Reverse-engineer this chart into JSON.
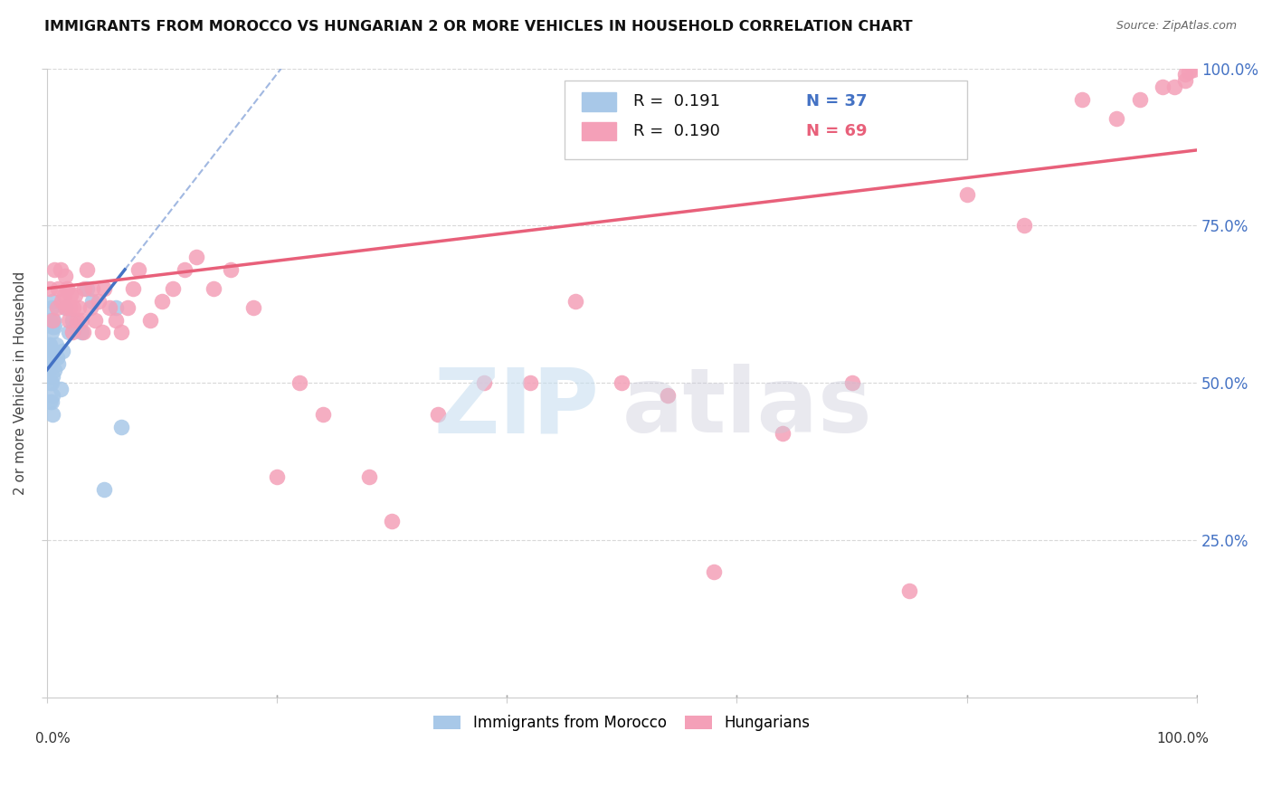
{
  "title": "IMMIGRANTS FROM MOROCCO VS HUNGARIAN 2 OR MORE VEHICLES IN HOUSEHOLD CORRELATION CHART",
  "source": "Source: ZipAtlas.com",
  "ylabel": "2 or more Vehicles in Household",
  "xlim": [
    0,
    1
  ],
  "ylim": [
    0,
    1
  ],
  "color_morocco": "#a8c8e8",
  "color_hungarian": "#f4a0b8",
  "color_line_morocco": "#4472c4",
  "color_line_hungarian": "#e8607a",
  "color_blue_text": "#4472c4",
  "color_pink_text": "#e8607a",
  "color_grid": "#d8d8d8",
  "morocco_x": [
    0.002,
    0.002,
    0.003,
    0.003,
    0.003,
    0.003,
    0.003,
    0.004,
    0.004,
    0.004,
    0.004,
    0.004,
    0.005,
    0.005,
    0.005,
    0.005,
    0.005,
    0.005,
    0.006,
    0.006,
    0.007,
    0.007,
    0.008,
    0.009,
    0.01,
    0.012,
    0.014,
    0.016,
    0.019,
    0.022,
    0.025,
    0.03,
    0.035,
    0.04,
    0.05,
    0.06,
    0.065
  ],
  "morocco_y": [
    0.56,
    0.52,
    0.6,
    0.56,
    0.53,
    0.5,
    0.47,
    0.62,
    0.58,
    0.54,
    0.5,
    0.47,
    0.63,
    0.59,
    0.55,
    0.51,
    0.48,
    0.45,
    0.6,
    0.55,
    0.59,
    0.52,
    0.56,
    0.54,
    0.53,
    0.49,
    0.55,
    0.62,
    0.58,
    0.6,
    0.59,
    0.58,
    0.65,
    0.63,
    0.33,
    0.62,
    0.43
  ],
  "hungarian_x": [
    0.003,
    0.005,
    0.007,
    0.009,
    0.01,
    0.012,
    0.013,
    0.015,
    0.016,
    0.017,
    0.018,
    0.019,
    0.02,
    0.021,
    0.022,
    0.023,
    0.025,
    0.026,
    0.028,
    0.03,
    0.032,
    0.033,
    0.035,
    0.038,
    0.04,
    0.042,
    0.045,
    0.048,
    0.05,
    0.055,
    0.06,
    0.065,
    0.07,
    0.075,
    0.08,
    0.09,
    0.1,
    0.11,
    0.12,
    0.13,
    0.145,
    0.16,
    0.18,
    0.2,
    0.22,
    0.24,
    0.28,
    0.3,
    0.34,
    0.38,
    0.42,
    0.46,
    0.5,
    0.54,
    0.58,
    0.64,
    0.7,
    0.75,
    0.8,
    0.85,
    0.9,
    0.93,
    0.95,
    0.97,
    0.98,
    0.99,
    0.99,
    0.993,
    0.997
  ],
  "hungarian_y": [
    0.65,
    0.6,
    0.68,
    0.62,
    0.65,
    0.68,
    0.63,
    0.64,
    0.67,
    0.62,
    0.65,
    0.6,
    0.62,
    0.64,
    0.58,
    0.62,
    0.64,
    0.6,
    0.62,
    0.6,
    0.58,
    0.65,
    0.68,
    0.62,
    0.65,
    0.6,
    0.63,
    0.58,
    0.65,
    0.62,
    0.6,
    0.58,
    0.62,
    0.65,
    0.68,
    0.6,
    0.63,
    0.65,
    0.68,
    0.7,
    0.65,
    0.68,
    0.62,
    0.35,
    0.5,
    0.45,
    0.35,
    0.28,
    0.45,
    0.5,
    0.5,
    0.63,
    0.5,
    0.48,
    0.2,
    0.42,
    0.5,
    0.17,
    0.8,
    0.75,
    0.95,
    0.92,
    0.95,
    0.97,
    0.97,
    0.98,
    0.99,
    0.995,
    0.998
  ],
  "mor_line_x0": 0.0,
  "mor_line_y0": 0.52,
  "mor_line_x1": 0.068,
  "mor_line_y1": 0.68,
  "hun_line_x0": 0.0,
  "hun_line_y0": 0.65,
  "hun_line_x1": 1.0,
  "hun_line_y1": 0.87
}
